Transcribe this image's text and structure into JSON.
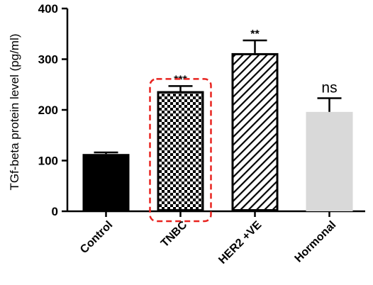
{
  "chart_data": {
    "type": "bar",
    "title": "",
    "xlabel": "",
    "ylabel": "TGf-beta protein level (pg/ml)",
    "ylim": [
      0,
      400
    ],
    "yticks": [
      0,
      100,
      200,
      300,
      400
    ],
    "ytick_labels": [
      "0",
      "100",
      "200",
      "300",
      "400"
    ],
    "categories": [
      "Control",
      "TNBC",
      "HER2 +VE",
      "Hormonal"
    ],
    "values": [
      113,
      237,
      312,
      196
    ],
    "errors": [
      3,
      10,
      25,
      27
    ],
    "annotations": [
      "",
      "***",
      "**",
      "ns"
    ],
    "bar_styles": [
      {
        "fill": "#000000",
        "pattern": "solid",
        "stroke": "#000000"
      },
      {
        "fill": "#ffffff",
        "pattern": "checkerboard",
        "stroke": "#000000",
        "pattern_color": "#000000"
      },
      {
        "fill": "#ffffff",
        "pattern": "diagonal-hatch",
        "stroke": "#000000",
        "pattern_color": "#000000"
      },
      {
        "fill": "#d9d9d9",
        "pattern": "solid",
        "stroke": "#d9d9d9"
      }
    ],
    "highlight_category": "TNBC",
    "highlight_color": "#e8231f",
    "grid": false,
    "legend": "none"
  }
}
